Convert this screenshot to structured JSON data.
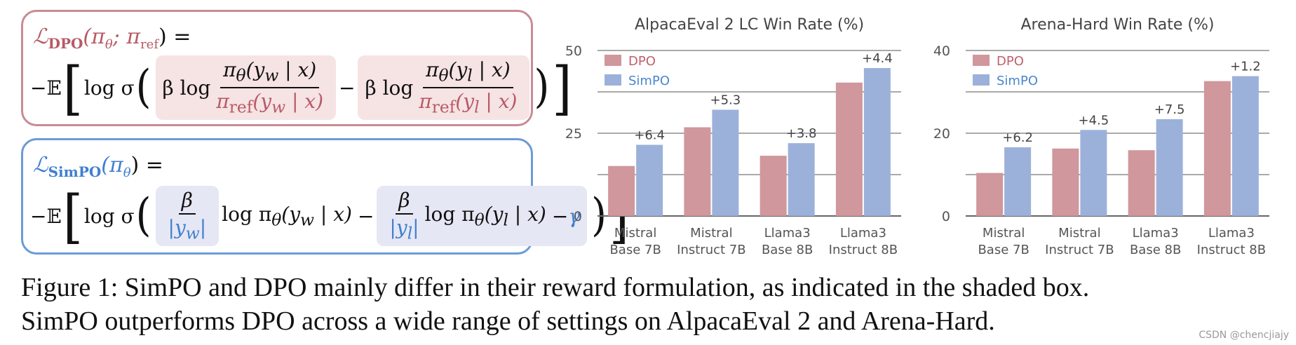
{
  "formulas": {
    "dpo": {
      "title": "ℒ",
      "title_sub": "DPO",
      "title_args": "(π",
      "title_theta": "θ",
      "title_rest": "; π",
      "title_ref": "ref",
      "title_eq": ") =",
      "lead": "−𝔼",
      "log_sigma": "log σ",
      "beta_log": "β log",
      "num_w": "π",
      "num_w_sub": "θ",
      "num_w_args": "(y",
      "num_w_idx": "w",
      "num_w_end": " | x)",
      "den_w": "π",
      "den_w_sub": "ref",
      "den_w_args": "(y",
      "den_w_idx": "w",
      "den_w_end": " | x)",
      "minus": "−",
      "num_l": "π",
      "num_l_sub": "θ",
      "num_l_args": "(y",
      "num_l_idx": "l",
      "num_l_end": " | x)",
      "den_l": "π",
      "den_l_sub": "ref",
      "den_l_args": "(y",
      "den_l_idx": "l",
      "den_l_end": " | x)"
    },
    "simpo": {
      "title": "ℒ",
      "title_sub": "SimPO",
      "title_args": "(π",
      "title_theta": "θ",
      "title_eq": ") =",
      "lead": "−𝔼",
      "log_sigma": "log σ",
      "beta": "β",
      "den_w": "|y",
      "den_w_idx": "w",
      "den_w_end": "|",
      "log_pi": "log π",
      "log_pi_sub": "θ",
      "args_w": "(y",
      "args_w_idx": "w",
      "args_w_end": " | x)",
      "minus": "−",
      "den_l": "|y",
      "den_l_idx": "l",
      "den_l_end": "|",
      "args_l": "(y",
      "args_l_idx": "l",
      "args_l_end": " | x)",
      "gamma_minus": "−",
      "gamma": "γ"
    }
  },
  "chart_data": [
    {
      "type": "bar",
      "title": "AlpacaEval 2 LC Win Rate (%)",
      "categories": [
        [
          "Mistral",
          "Base 7B"
        ],
        [
          "Mistral",
          "Instruct 7B"
        ],
        [
          "Llama3",
          "Base 8B"
        ],
        [
          "Llama3",
          "Instruct 8B"
        ]
      ],
      "series": [
        {
          "name": "DPO",
          "color": "#d0979c",
          "values": [
            15.1,
            26.8,
            18.2,
            40.3
          ]
        },
        {
          "name": "SimPO",
          "color": "#9cb1da",
          "values": [
            21.5,
            32.1,
            22.0,
            44.7
          ]
        }
      ],
      "annotations": [
        "+6.4",
        "+5.3",
        "+3.8",
        "+4.4"
      ],
      "yticks": [
        0,
        25,
        50
      ],
      "ylim": [
        0,
        50
      ],
      "grid": true,
      "legend": "top-left"
    },
    {
      "type": "bar",
      "title": "Arena-Hard Win Rate (%)",
      "categories": [
        [
          "Mistral",
          "Base 7B"
        ],
        [
          "Mistral",
          "Instruct 7B"
        ],
        [
          "Llama3",
          "Base 8B"
        ],
        [
          "Llama3",
          "Instruct 8B"
        ]
      ],
      "series": [
        {
          "name": "DPO",
          "color": "#d0979c",
          "values": [
            10.4,
            16.3,
            15.9,
            32.6
          ]
        },
        {
          "name": "SimPO",
          "color": "#9cb1da",
          "values": [
            16.6,
            20.8,
            23.4,
            33.8
          ]
        }
      ],
      "annotations": [
        "+6.2",
        "+4.5",
        "+7.5",
        "+1.2"
      ],
      "yticks": [
        0,
        20,
        40
      ],
      "ylim": [
        0,
        40
      ],
      "grid": true,
      "legend": "top-left"
    }
  ],
  "caption": {
    "line1": "Figure 1: SimPO and DPO mainly differ in their reward formulation, as indicated in the shaded box.",
    "line2": "SimPO outperforms DPO across a wide range of settings on AlpacaEval 2 and Arena-Hard."
  },
  "watermark": "CSDN @chencjiajy"
}
